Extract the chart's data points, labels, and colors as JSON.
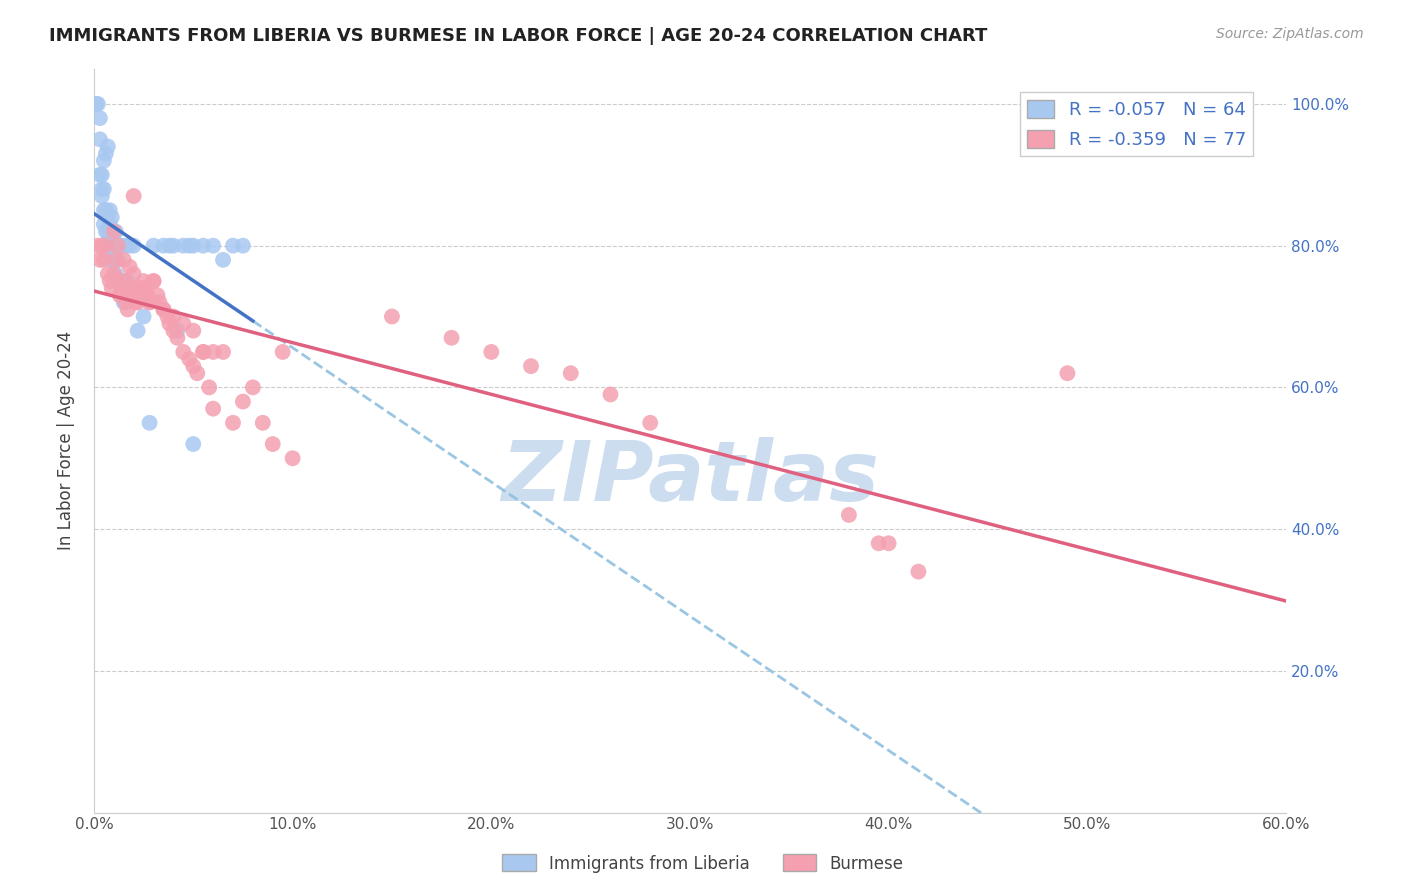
{
  "title": "IMMIGRANTS FROM LIBERIA VS BURMESE IN LABOR FORCE | AGE 20-24 CORRELATION CHART",
  "source": "Source: ZipAtlas.com",
  "ylabel": "In Labor Force | Age 20-24",
  "xlim": [
    0.0,
    0.6
  ],
  "ylim": [
    0.0,
    1.05
  ],
  "x_ticks": [
    0.0,
    0.1,
    0.2,
    0.3,
    0.4,
    0.5,
    0.6
  ],
  "x_tick_labels": [
    "0.0%",
    "10.0%",
    "20.0%",
    "30.0%",
    "40.0%",
    "50.0%",
    "60.0%"
  ],
  "y_ticks": [
    0.0,
    0.2,
    0.4,
    0.6,
    0.8,
    1.0
  ],
  "y_tick_labels_right": [
    "",
    "20.0%",
    "40.0%",
    "60.0%",
    "80.0%",
    "100.0%"
  ],
  "liberia_R": -0.057,
  "liberia_N": 64,
  "burmese_R": -0.359,
  "burmese_N": 77,
  "liberia_color": "#a8c8f0",
  "burmese_color": "#f4a0b0",
  "liberia_line_color": "#4472c4",
  "burmese_line_color": "#e06080",
  "dash_line_color": "#90c0e0",
  "liberia_x": [
    0.001,
    0.002,
    0.003,
    0.003,
    0.004,
    0.004,
    0.005,
    0.005,
    0.005,
    0.006,
    0.006,
    0.006,
    0.007,
    0.007,
    0.007,
    0.008,
    0.008,
    0.008,
    0.009,
    0.009,
    0.01,
    0.01,
    0.01,
    0.011,
    0.011,
    0.012,
    0.012,
    0.013,
    0.014,
    0.015,
    0.016,
    0.017,
    0.018,
    0.02,
    0.022,
    0.025,
    0.028,
    0.03,
    0.035,
    0.038,
    0.04,
    0.042,
    0.045,
    0.048,
    0.05,
    0.055,
    0.06,
    0.065,
    0.07,
    0.075,
    0.003,
    0.004,
    0.005,
    0.006,
    0.007,
    0.008,
    0.009,
    0.01,
    0.011,
    0.012,
    0.012,
    0.013,
    0.015,
    0.05
  ],
  "liberia_y": [
    1.0,
    1.0,
    0.95,
    0.98,
    0.87,
    0.9,
    0.83,
    0.85,
    0.88,
    0.82,
    0.85,
    0.8,
    0.82,
    0.8,
    0.84,
    0.8,
    0.81,
    0.83,
    0.8,
    0.78,
    0.8,
    0.82,
    0.78,
    0.76,
    0.8,
    0.8,
    0.78,
    0.75,
    0.8,
    0.72,
    0.8,
    0.75,
    0.8,
    0.8,
    0.68,
    0.7,
    0.55,
    0.8,
    0.8,
    0.8,
    0.8,
    0.68,
    0.8,
    0.8,
    0.8,
    0.8,
    0.8,
    0.78,
    0.8,
    0.8,
    0.9,
    0.88,
    0.92,
    0.93,
    0.94,
    0.85,
    0.84,
    0.78,
    0.82,
    0.8,
    0.75,
    0.8,
    0.75,
    0.52
  ],
  "burmese_x": [
    0.002,
    0.003,
    0.004,
    0.005,
    0.006,
    0.007,
    0.008,
    0.009,
    0.01,
    0.011,
    0.012,
    0.013,
    0.014,
    0.015,
    0.016,
    0.017,
    0.018,
    0.019,
    0.02,
    0.021,
    0.022,
    0.023,
    0.024,
    0.025,
    0.026,
    0.027,
    0.028,
    0.03,
    0.032,
    0.033,
    0.035,
    0.037,
    0.038,
    0.04,
    0.042,
    0.045,
    0.048,
    0.05,
    0.052,
    0.055,
    0.058,
    0.06,
    0.065,
    0.07,
    0.075,
    0.08,
    0.085,
    0.09,
    0.095,
    0.1,
    0.01,
    0.012,
    0.015,
    0.018,
    0.02,
    0.022,
    0.025,
    0.028,
    0.03,
    0.035,
    0.04,
    0.045,
    0.05,
    0.055,
    0.06,
    0.38,
    0.395,
    0.4,
    0.415,
    0.49,
    0.15,
    0.18,
    0.2,
    0.22,
    0.24,
    0.26,
    0.28
  ],
  "burmese_y": [
    0.8,
    0.78,
    0.8,
    0.78,
    0.8,
    0.76,
    0.75,
    0.74,
    0.76,
    0.78,
    0.75,
    0.73,
    0.74,
    0.75,
    0.72,
    0.71,
    0.73,
    0.74,
    0.87,
    0.72,
    0.72,
    0.73,
    0.74,
    0.75,
    0.74,
    0.73,
    0.72,
    0.75,
    0.73,
    0.72,
    0.71,
    0.7,
    0.69,
    0.68,
    0.67,
    0.65,
    0.64,
    0.63,
    0.62,
    0.65,
    0.6,
    0.65,
    0.65,
    0.55,
    0.58,
    0.6,
    0.55,
    0.52,
    0.65,
    0.5,
    0.82,
    0.8,
    0.78,
    0.77,
    0.76,
    0.74,
    0.73,
    0.72,
    0.75,
    0.71,
    0.7,
    0.69,
    0.68,
    0.65,
    0.57,
    0.42,
    0.38,
    0.38,
    0.34,
    0.62,
    0.7,
    0.67,
    0.65,
    0.63,
    0.62,
    0.59,
    0.55
  ],
  "watermark": "ZIPatlas",
  "watermark_color": "#ccddf0",
  "background_color": "#ffffff",
  "legend_box_color": "#e8f0fa",
  "legend_text_color": "#4472c4"
}
